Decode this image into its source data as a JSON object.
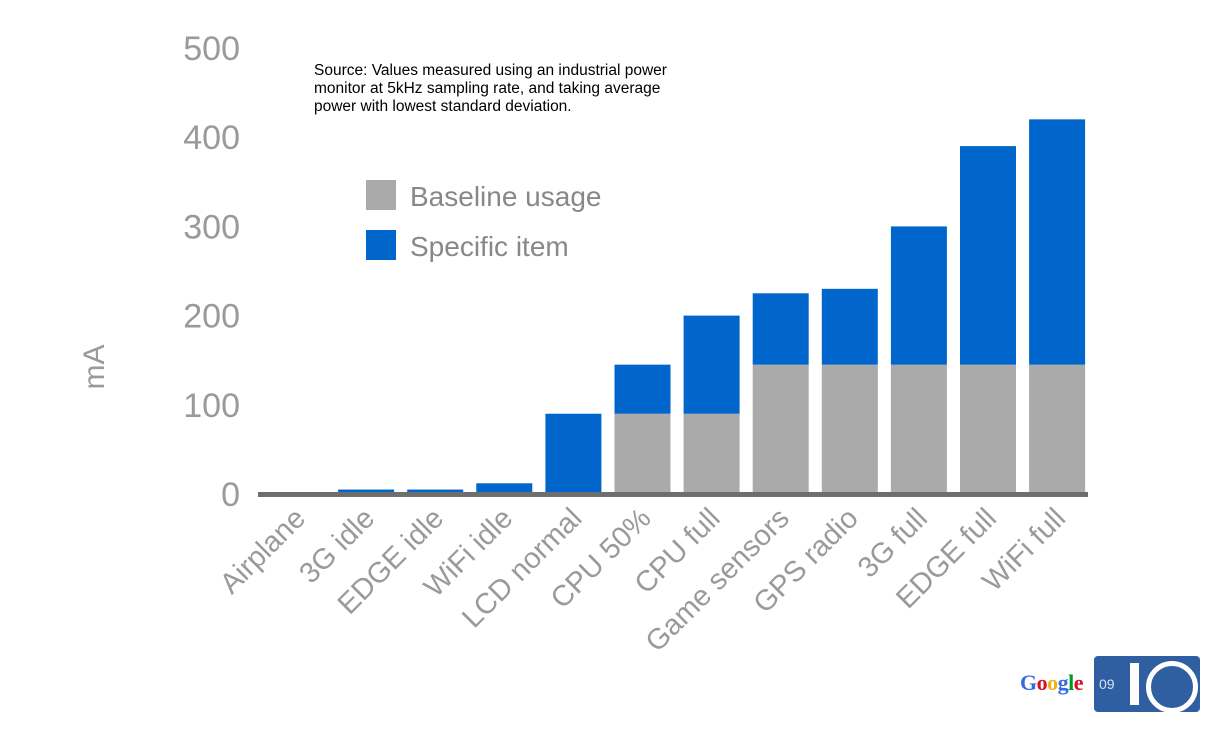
{
  "chart_data": {
    "type": "bar",
    "stacked": true,
    "categories": [
      "Airplane",
      "3G idle",
      "EDGE idle",
      "WiFi idle",
      "LCD normal",
      "CPU 50%",
      "CPU full",
      "Game sensors",
      "GPS radio",
      "3G full",
      "EDGE full",
      "WiFi full"
    ],
    "series": [
      {
        "name": "Baseline usage",
        "color": "#aaaaaa",
        "values": [
          0,
          0,
          0,
          0,
          0,
          90,
          90,
          145,
          145,
          145,
          145,
          145
        ]
      },
      {
        "name": "Specific item",
        "color": "#0066cc",
        "values": [
          2,
          5,
          5,
          12,
          90,
          55,
          110,
          80,
          85,
          155,
          245,
          275
        ]
      }
    ],
    "ylabel": "mA",
    "ylim": [
      0,
      500
    ],
    "yticks": [
      0,
      100,
      200,
      300,
      400,
      500
    ],
    "grid": false,
    "legend": "top-left"
  },
  "annotation": {
    "line1": "Source: Values measured using an industrial power",
    "line2": "monitor at 5kHz sampling rate, and taking average",
    "line3": "power with lowest standard deviation."
  },
  "logo": {
    "google": "Google",
    "edition": "09",
    "io": "IO",
    "google_colors": [
      "#3369e8",
      "#d50f25",
      "#eeb211",
      "#3369e8",
      "#009925",
      "#d50f25"
    ]
  },
  "colors": {
    "axis": "#6e6e6e",
    "text": "#9a9a9a"
  }
}
